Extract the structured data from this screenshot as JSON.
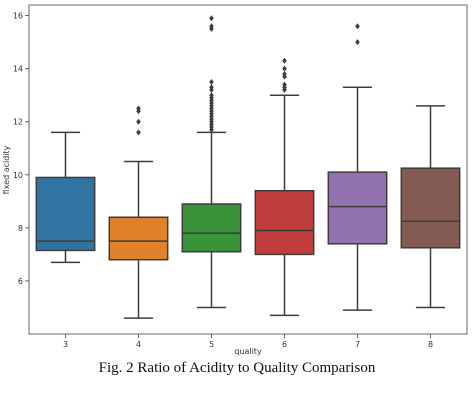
{
  "caption": "Fig. 2 Ratio of Acidity to Quality Comparison",
  "chart_data": {
    "type": "box",
    "title": "",
    "xlabel": "quality",
    "ylabel": "fixed acidity",
    "ylim": [
      4.0,
      16.4
    ],
    "yticks": [
      6,
      8,
      10,
      12,
      14,
      16
    ],
    "grid": false,
    "categories": [
      "3",
      "4",
      "5",
      "6",
      "7",
      "8"
    ],
    "boxes": [
      {
        "category": "3",
        "color": "#3274a1",
        "whisker_low": 6.7,
        "q1": 7.15,
        "median": 7.5,
        "q3": 9.9,
        "whisker_high": 11.6,
        "outliers": []
      },
      {
        "category": "4",
        "color": "#e1812c",
        "whisker_low": 4.6,
        "q1": 6.8,
        "median": 7.5,
        "q3": 8.4,
        "whisker_high": 10.5,
        "outliers": [
          11.6,
          12.0,
          12.4,
          12.5
        ]
      },
      {
        "category": "5",
        "color": "#3a923a",
        "whisker_low": 5.0,
        "q1": 7.1,
        "median": 7.8,
        "q3": 8.9,
        "whisker_high": 11.6,
        "outliers": [
          11.7,
          11.8,
          11.9,
          12.0,
          12.1,
          12.2,
          12.3,
          12.4,
          12.5,
          12.6,
          12.7,
          12.8,
          12.9,
          13.0,
          13.2,
          13.3,
          13.5,
          15.5,
          15.6,
          15.9
        ]
      },
      {
        "category": "6",
        "color": "#c03d3e",
        "whisker_low": 4.7,
        "q1": 7.0,
        "median": 7.9,
        "q3": 9.4,
        "whisker_high": 13.0,
        "outliers": [
          13.2,
          13.3,
          13.4,
          13.7,
          13.8,
          14.0,
          14.3
        ]
      },
      {
        "category": "7",
        "color": "#9372b2",
        "whisker_low": 4.9,
        "q1": 7.4,
        "median": 8.8,
        "q3": 10.1,
        "whisker_high": 13.3,
        "outliers": [
          15.0,
          15.6
        ]
      },
      {
        "category": "8",
        "color": "#845b53",
        "whisker_low": 5.0,
        "q1": 7.25,
        "median": 8.25,
        "q3": 10.25,
        "whisker_high": 12.6,
        "outliers": []
      }
    ]
  }
}
